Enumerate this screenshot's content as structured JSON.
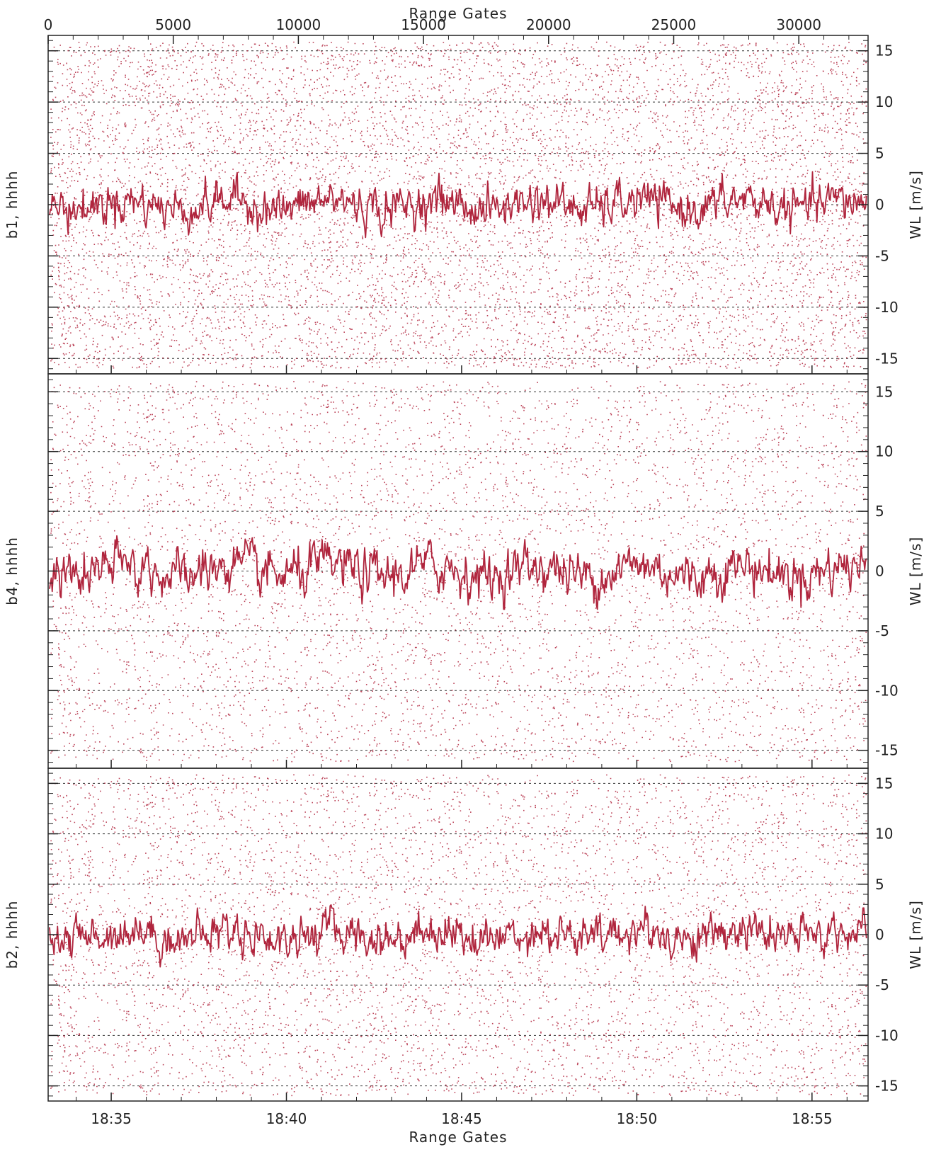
{
  "figure": {
    "top_axis_label": "Range Gates",
    "bottom_axis_label": "Range Gates",
    "top_axis_ticks": [
      "0",
      "5000",
      "10000",
      "15000",
      "20000",
      "25000",
      "30000"
    ],
    "top_axis_tick_values": [
      0,
      5000,
      10000,
      15000,
      20000,
      25000,
      30000
    ],
    "top_axis_range": [
      0,
      32768
    ],
    "bottom_axis_ticks": [
      "18:35",
      "18:40",
      "18:45",
      "18:50",
      "18:55"
    ],
    "bottom_axis_tick_minutes": [
      35,
      40,
      45,
      50,
      55
    ],
    "bottom_axis_range_minutes": [
      33.2,
      56.6
    ],
    "colors": {
      "data": "#b0253d",
      "axis": "#222222",
      "grid": "#000000",
      "background": "#ffffff"
    }
  },
  "chart_data": [
    {
      "type": "scatter",
      "panel_label": "b1, hhhh",
      "ylabel": "WL [m/s]",
      "ylim": [
        -16.5,
        16.5
      ],
      "y_ticks": [
        "15",
        "10",
        "5",
        "0",
        "-5",
        "-10",
        "-15"
      ],
      "y_tick_values": [
        15,
        10,
        5,
        0,
        -5,
        -10,
        -15
      ],
      "grid": "dashed horizontal at -15, -10, -5, 0, 5, 10, 15",
      "series": [
        {
          "values": "noise: dots spread uniformly between -16 and 16 m/s"
        },
        {
          "values": "signal: continuous trace near 0 m/s, fluctuating between about -3 and 3 m/s"
        }
      ]
    },
    {
      "type": "scatter",
      "panel_label": "b4, hhhh",
      "ylabel": "WL [m/s]",
      "ylim": [
        -16.5,
        16.5
      ],
      "y_ticks": [
        "15",
        "10",
        "5",
        "0",
        "-5",
        "-10",
        "-15"
      ],
      "y_tick_values": [
        15,
        10,
        5,
        0,
        -5,
        -10,
        -15
      ],
      "grid": "dashed horizontal at -15, -10, -5, 0, 5, 10, 15",
      "series": [
        {
          "values": "noise: dots spread uniformly between -16 and 16 m/s"
        },
        {
          "values": "signal: continuous trace near 0 m/s, fluctuating between about -3 and 3 m/s"
        }
      ]
    },
    {
      "type": "scatter",
      "panel_label": "b2, hhhh",
      "ylabel": "WL [m/s]",
      "ylim": [
        -16.5,
        16.5
      ],
      "y_ticks": [
        "15",
        "10",
        "5",
        "0",
        "-5",
        "-10",
        "-15"
      ],
      "y_tick_values": [
        15,
        10,
        5,
        0,
        -5,
        -10,
        -15
      ],
      "grid": "dashed horizontal at -15, -10, -5, 0, 5, 10, 15",
      "series": [
        {
          "values": "noise: dots spread uniformly between -16 and 16 m/s"
        },
        {
          "values": "signal: continuous trace near 0 m/s, fluctuating between about -3 and 3 m/s"
        }
      ]
    }
  ]
}
